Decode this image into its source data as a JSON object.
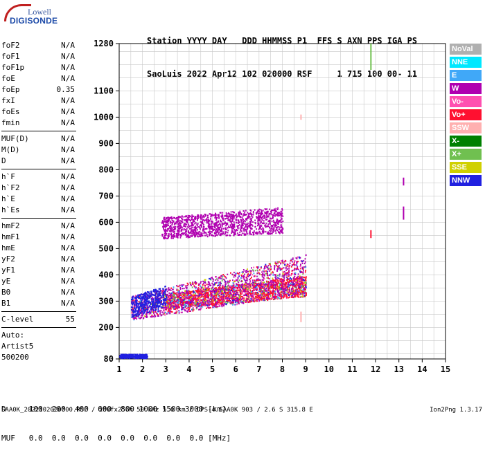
{
  "logo": {
    "brand_top": "Lowell",
    "brand_bottom": "DIGISONDE"
  },
  "header": {
    "labels": "Station YYYY DAY   DDD HHMMSS P1  FFS S AXN PPS IGA PS",
    "values": "SaoLuis 2022 Apr12 102 020000 RSF     1 715 100 00- 11"
  },
  "params": {
    "group1": [
      {
        "name": "foF2",
        "value": "N/A"
      },
      {
        "name": "foF1",
        "value": "N/A"
      },
      {
        "name": "foF1p",
        "value": "N/A"
      },
      {
        "name": "foE",
        "value": "N/A"
      },
      {
        "name": "foEp",
        "value": "0.35"
      },
      {
        "name": "fxI",
        "value": "N/A"
      },
      {
        "name": "foEs",
        "value": "N/A"
      },
      {
        "name": "fmin",
        "value": "N/A"
      }
    ],
    "group2": [
      {
        "name": "MUF(D)",
        "value": "N/A"
      },
      {
        "name": "M(D)",
        "value": "N/A"
      },
      {
        "name": "D",
        "value": "N/A"
      }
    ],
    "group3": [
      {
        "name": "h`F",
        "value": "N/A"
      },
      {
        "name": "h`F2",
        "value": "N/A"
      },
      {
        "name": "h`E",
        "value": "N/A"
      },
      {
        "name": "h`Es",
        "value": "N/A"
      }
    ],
    "group4": [
      {
        "name": "hmF2",
        "value": "N/A"
      },
      {
        "name": "hmF1",
        "value": "N/A"
      },
      {
        "name": "hmE",
        "value": "N/A"
      },
      {
        "name": "yF2",
        "value": "N/A"
      },
      {
        "name": "yF1",
        "value": "N/A"
      },
      {
        "name": "yE",
        "value": "N/A"
      },
      {
        "name": "B0",
        "value": "N/A"
      },
      {
        "name": "B1",
        "value": "N/A"
      }
    ],
    "clevel": {
      "name": "C-level",
      "value": "55"
    },
    "auto": [
      "Auto:",
      "Artist5",
      "500200"
    ]
  },
  "legend": [
    {
      "label": "NoVal",
      "color": "#b0b0b0"
    },
    {
      "label": "NNE",
      "color": "#00e8ff"
    },
    {
      "label": "E",
      "color": "#40a8f8"
    },
    {
      "label": "W",
      "color": "#b000b0"
    },
    {
      "label": "Vo-",
      "color": "#ff50b0"
    },
    {
      "label": "Vo+",
      "color": "#ff1030"
    },
    {
      "label": "SSW",
      "color": "#ffb0b0"
    },
    {
      "label": "X-",
      "color": "#008000"
    },
    {
      "label": "X+",
      "color": "#70c050"
    },
    {
      "label": "SSE",
      "color": "#d0d000"
    },
    {
      "label": "NNW",
      "color": "#2020e0"
    }
  ],
  "bottom": {
    "d_row": "D     100  200  400  600  800 1000 1500 3000 [km]",
    "muf_row": "MUF   0.0  0.0  0.0  0.0  0.0  0.0  0.0  0.0 [MHz]"
  },
  "footer": "SAA0K_2022102020000.RSF / 280fx256h 50 kHz 5.0 km / DPS-4 SAA0K 903 / 2.6 S 315.8 E",
  "version": "Ion2Png 1.3.17",
  "chart_data": {
    "type": "scatter",
    "x_ticks": [
      1,
      2,
      3,
      4,
      5,
      6,
      7,
      8,
      9,
      10,
      11,
      12,
      13,
      14,
      15
    ],
    "y_ticks": [
      80,
      200,
      300,
      400,
      500,
      600,
      700,
      800,
      900,
      1000,
      1100,
      1280
    ],
    "xlim": [
      1,
      15
    ],
    "ylim": [
      80,
      1280
    ],
    "grid": true,
    "regions": [
      {
        "series": "Vo+",
        "x": [
          3.0,
          9.0
        ],
        "y_start": [
          270,
          320
        ],
        "y_end": [
          330,
          400
        ]
      },
      {
        "series": "W",
        "x": [
          1.5,
          9.0
        ],
        "y_start": [
          230,
          330
        ],
        "y_end": [
          320,
          480
        ]
      },
      {
        "series": "W",
        "x": [
          2.8,
          8.0
        ],
        "y_start": [
          540,
          560
        ],
        "y_end": [
          620,
          660
        ]
      },
      {
        "series": "NNW",
        "x": [
          1.5,
          3.0
        ],
        "y_start": [
          240,
          280
        ],
        "y_end": [
          320,
          360
        ]
      },
      {
        "series": "NNW",
        "x": [
          1.0,
          2.2
        ],
        "y_start": [
          85,
          85
        ],
        "y_end": [
          100,
          100
        ]
      }
    ],
    "traces": [
      {
        "series": "W",
        "x": 13.2,
        "y": [
          740,
          770
        ]
      },
      {
        "series": "W",
        "x": 13.2,
        "y": [
          610,
          660
        ]
      },
      {
        "series": "X+",
        "x": 11.8,
        "y": [
          1180,
          1280
        ]
      },
      {
        "series": "Vo+",
        "x": 11.8,
        "y": [
          540,
          570
        ]
      },
      {
        "series": "SSW",
        "x": 8.8,
        "y": [
          990,
          1010
        ]
      },
      {
        "series": "SSW",
        "x": 8.8,
        "y": [
          220,
          260
        ]
      }
    ]
  }
}
